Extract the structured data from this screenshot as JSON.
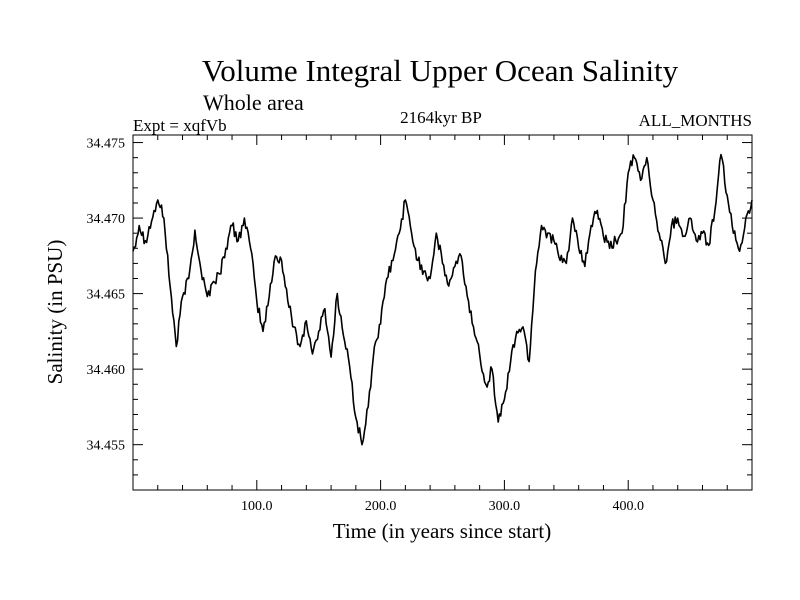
{
  "chart_data": {
    "type": "line",
    "title": "Volume Integral Upper Ocean Salinity",
    "subtitle": "Whole area",
    "left_label": "Expt = xqfVb",
    "center_label": "2164kyr BP",
    "right_label": "ALL_MONTHS",
    "xlabel": "Time (in years since start)",
    "ylabel": "Salinity (in PSU)",
    "xlim": [
      0,
      500
    ],
    "ylim": [
      34.452,
      34.4755
    ],
    "x_ticks": [
      100,
      200,
      300,
      400
    ],
    "x_tick_labels": [
      "100.0",
      "200.0",
      "300.0",
      "400.0"
    ],
    "y_ticks": [
      34.455,
      34.46,
      34.465,
      34.47,
      34.475
    ],
    "y_tick_labels": [
      "34.455",
      "34.460",
      "34.465",
      "34.470",
      "34.475"
    ],
    "series": [
      {
        "name": "salinity",
        "color": "#000000",
        "points": [
          [
            0,
            34.4678
          ],
          [
            5,
            34.4695
          ],
          [
            10,
            34.4685
          ],
          [
            15,
            34.4698
          ],
          [
            20,
            34.4712
          ],
          [
            25,
            34.47
          ],
          [
            30,
            34.4655
          ],
          [
            35,
            34.4615
          ],
          [
            40,
            34.4648
          ],
          [
            45,
            34.466
          ],
          [
            50,
            34.4692
          ],
          [
            55,
            34.4665
          ],
          [
            60,
            34.4648
          ],
          [
            65,
            34.4658
          ],
          [
            70,
            34.4663
          ],
          [
            75,
            34.468
          ],
          [
            80,
            34.4695
          ],
          [
            85,
            34.4685
          ],
          [
            90,
            34.47
          ],
          [
            95,
            34.468
          ],
          [
            100,
            34.4645
          ],
          [
            105,
            34.4625
          ],
          [
            110,
            34.4648
          ],
          [
            115,
            34.4675
          ],
          [
            120,
            34.4672
          ],
          [
            125,
            34.4645
          ],
          [
            130,
            34.4628
          ],
          [
            135,
            34.4615
          ],
          [
            140,
            34.4632
          ],
          [
            145,
            34.461
          ],
          [
            150,
            34.4625
          ],
          [
            155,
            34.464
          ],
          [
            160,
            34.4608
          ],
          [
            165,
            34.465
          ],
          [
            170,
            34.4622
          ],
          [
            175,
            34.4602
          ],
          [
            180,
            34.4568
          ],
          [
            185,
            34.455
          ],
          [
            190,
            34.4575
          ],
          [
            195,
            34.4615
          ],
          [
            200,
            34.463
          ],
          [
            205,
            34.466
          ],
          [
            210,
            34.4672
          ],
          [
            215,
            34.469
          ],
          [
            220,
            34.4712
          ],
          [
            225,
            34.469
          ],
          [
            230,
            34.4672
          ],
          [
            235,
            34.4665
          ],
          [
            240,
            34.466
          ],
          [
            245,
            34.469
          ],
          [
            250,
            34.467
          ],
          [
            255,
            34.4655
          ],
          [
            260,
            34.4668
          ],
          [
            265,
            34.4675
          ],
          [
            270,
            34.4648
          ],
          [
            275,
            34.4628
          ],
          [
            280,
            34.461
          ],
          [
            285,
            34.459
          ],
          [
            290,
            34.46
          ],
          [
            295,
            34.4565
          ],
          [
            300,
            34.458
          ],
          [
            305,
            34.4605
          ],
          [
            310,
            34.4625
          ],
          [
            315,
            34.4628
          ],
          [
            320,
            34.4605
          ],
          [
            325,
            34.4665
          ],
          [
            330,
            34.4695
          ],
          [
            335,
            34.469
          ],
          [
            340,
            34.4685
          ],
          [
            345,
            34.4672
          ],
          [
            350,
            34.467
          ],
          [
            355,
            34.47
          ],
          [
            360,
            34.468
          ],
          [
            365,
            34.4668
          ],
          [
            370,
            34.4695
          ],
          [
            375,
            34.4705
          ],
          [
            380,
            34.4688
          ],
          [
            385,
            34.468
          ],
          [
            390,
            34.4685
          ],
          [
            395,
            34.469
          ],
          [
            400,
            34.473
          ],
          [
            405,
            34.474
          ],
          [
            410,
            34.4725
          ],
          [
            415,
            34.474
          ],
          [
            420,
            34.4712
          ],
          [
            425,
            34.469
          ],
          [
            430,
            34.467
          ],
          [
            435,
            34.4695
          ],
          [
            440,
            34.47
          ],
          [
            445,
            34.4688
          ],
          [
            450,
            34.47
          ],
          [
            455,
            34.4685
          ],
          [
            460,
            34.469
          ],
          [
            465,
            34.4682
          ],
          [
            470,
            34.4705
          ],
          [
            475,
            34.4742
          ],
          [
            480,
            34.4715
          ],
          [
            485,
            34.469
          ],
          [
            490,
            34.4678
          ],
          [
            495,
            34.47
          ],
          [
            500,
            34.4712
          ]
        ]
      }
    ]
  }
}
